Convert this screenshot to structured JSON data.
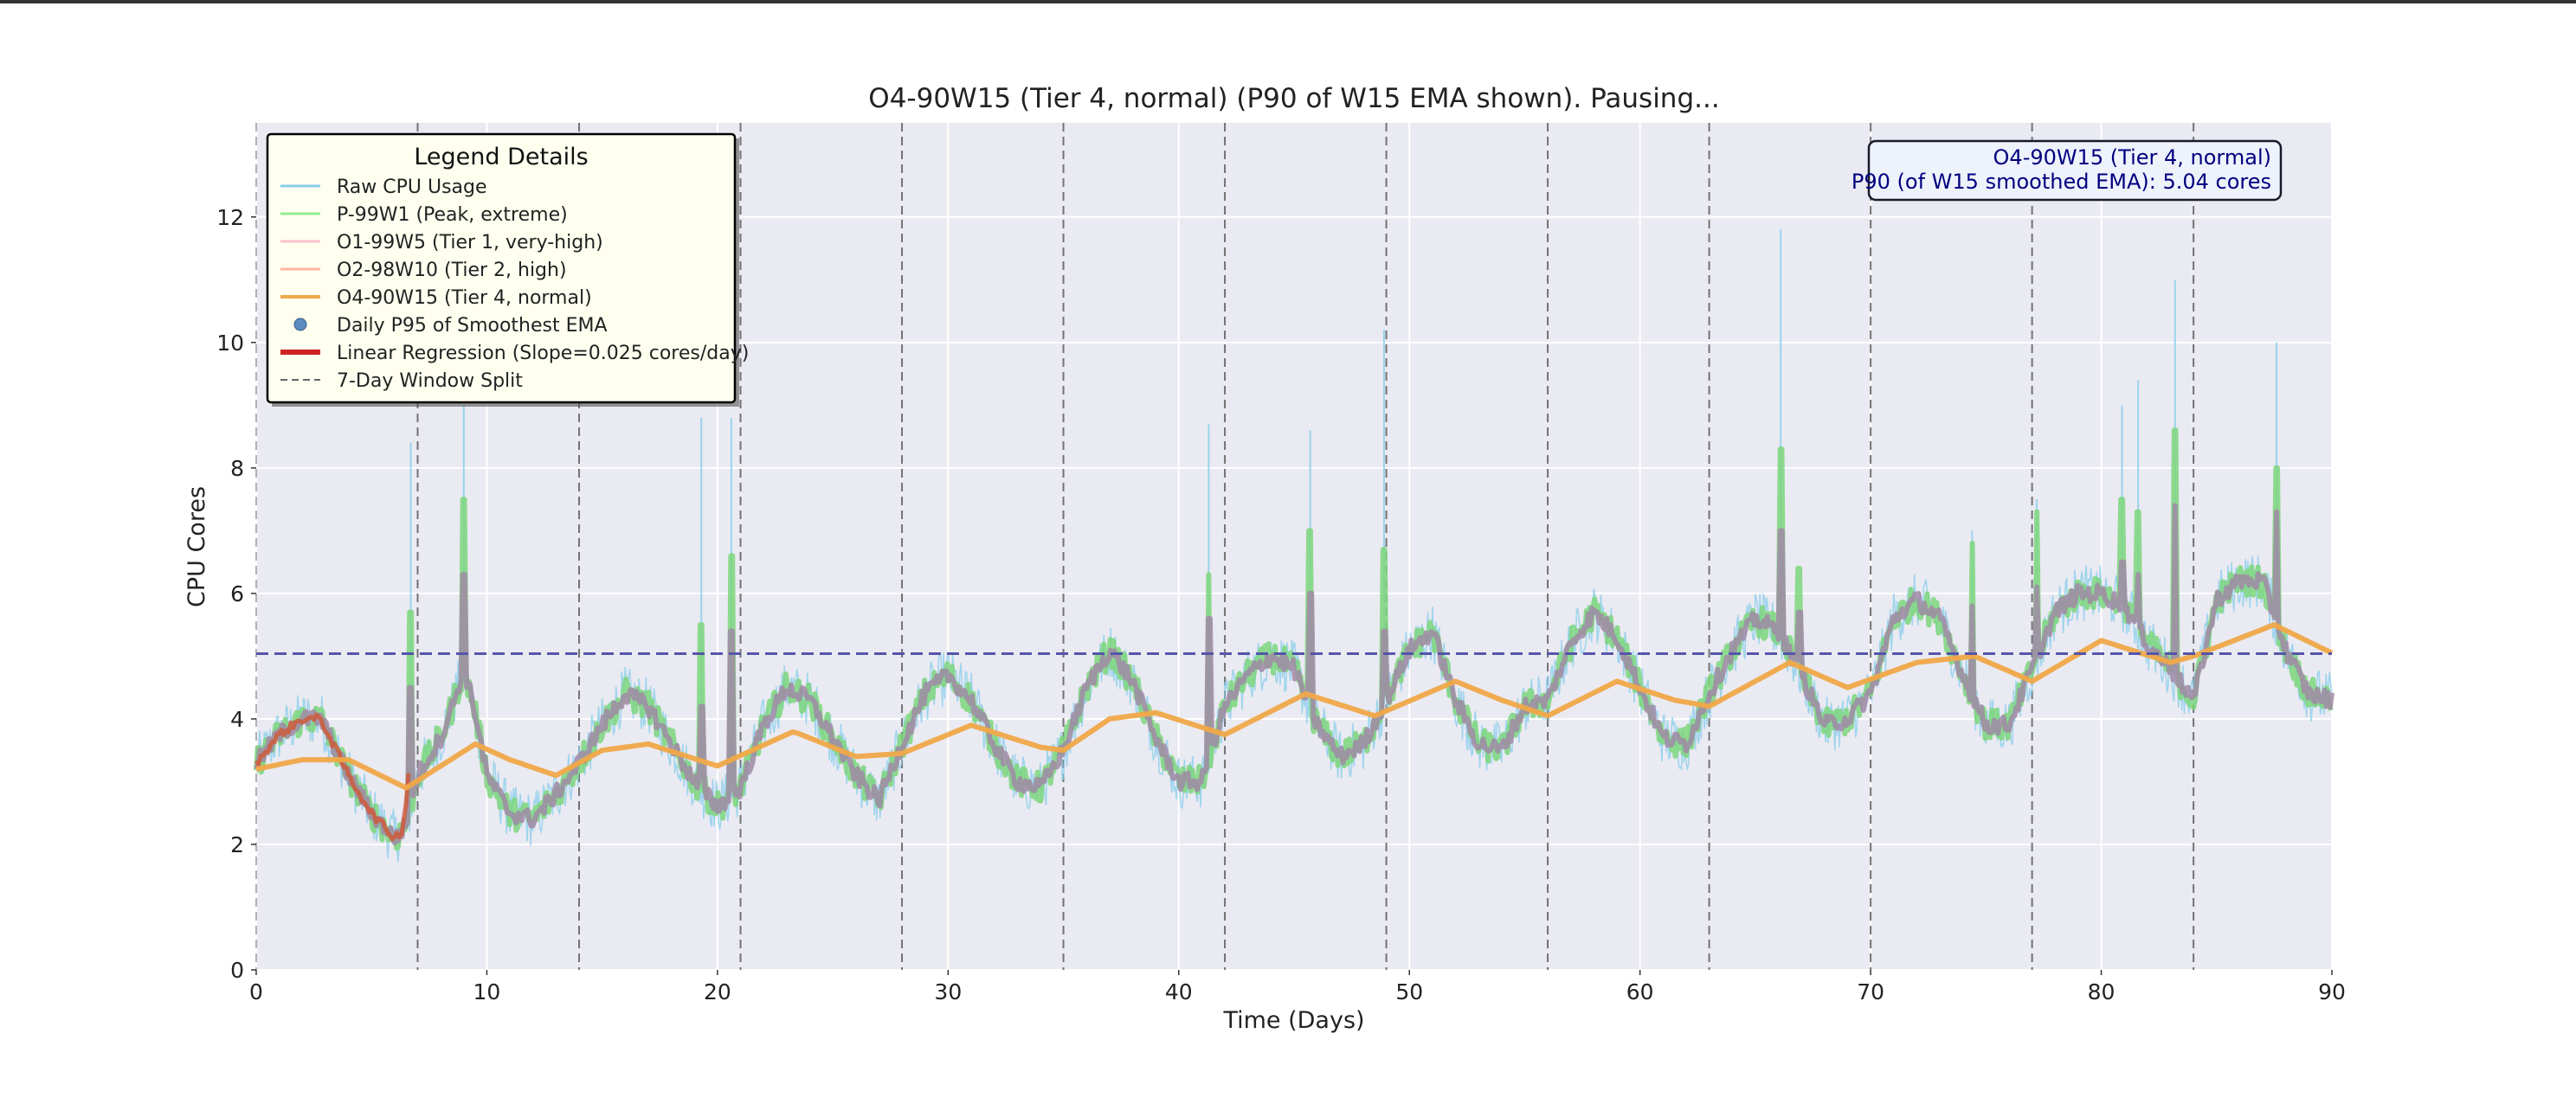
{
  "chart_data": {
    "type": "line",
    "title": "O4-90W15 (Tier 4, normal) (P90 of W15 EMA shown). Pausing...",
    "xlabel": "Time (Days)",
    "ylabel": "CPU Cores",
    "xlim": [
      0,
      90
    ],
    "ylim": [
      0,
      13.5
    ],
    "xticks": [
      0,
      10,
      20,
      30,
      40,
      50,
      60,
      70,
      80,
      90
    ],
    "yticks": [
      0,
      2,
      4,
      6,
      8,
      10,
      12
    ],
    "grid": true,
    "legend": {
      "title": "Legend Details",
      "placement": "top-left",
      "entries": [
        {
          "label": "Raw CPU Usage",
          "color": "#87ceeb",
          "kind": "line"
        },
        {
          "label": "P-99W1 (Peak, extreme)",
          "color": "#90ee90",
          "kind": "line"
        },
        {
          "label": "O1-99W5 (Tier 1, very-high)",
          "color": "#ffc0cb",
          "kind": "line"
        },
        {
          "label": "O2-98W10 (Tier 2, high)",
          "color": "#ffb6a0",
          "kind": "line"
        },
        {
          "label": "O4-90W15 (Tier 4, normal)",
          "color": "#f0a848",
          "kind": "line"
        },
        {
          "label": "Daily P95 of Smoothest EMA",
          "color": "#5b8dbf",
          "kind": "dot"
        },
        {
          "label": "Linear Regression (Slope=0.025 cores/day)",
          "color": "#cc2222",
          "kind": "thickline"
        },
        {
          "label": "7-Day Window Split",
          "color": "#666666",
          "kind": "dashed"
        }
      ]
    },
    "annotation": {
      "line1": "O4-90W15 (Tier 4, normal)",
      "line2": "P90 (of W15 smoothed EMA): 5.04 cores",
      "placement": "top-right"
    },
    "p90_threshold": 5.04,
    "window_splits": [
      0,
      7,
      14,
      21,
      28,
      35,
      42,
      49,
      56,
      63,
      70,
      77,
      84
    ],
    "colors": {
      "raw": "#87ceeb",
      "peak": "#7cd67c",
      "tier1": "#a08aa6",
      "tier2": "#cd5c3c",
      "tier4": "#f0a848",
      "p90line": "#5555aa",
      "split": "#666666",
      "plot_bg": "#eaeaf2"
    },
    "series": [
      {
        "name": "O2-98W10 (Tier 2, high)",
        "x": [
          0,
          1,
          2,
          2.8,
          4,
          5,
          6,
          6.5,
          7,
          7.5,
          8,
          8.5,
          9,
          9.5,
          10,
          11,
          12,
          13,
          14,
          15,
          16,
          17,
          18,
          19,
          20,
          21,
          22,
          23,
          24,
          25,
          26,
          27,
          28,
          29,
          30,
          31,
          32,
          33,
          34,
          35,
          36,
          37,
          38,
          39,
          40,
          41,
          42,
          43,
          44,
          45,
          46,
          47,
          48,
          49,
          50,
          51,
          52,
          53,
          54,
          55,
          56,
          57,
          58,
          59,
          60,
          61,
          62,
          63,
          64,
          65,
          66,
          67,
          68,
          69,
          70,
          71,
          72,
          73,
          74,
          75,
          76,
          77,
          78,
          79,
          80,
          81,
          82,
          83,
          84,
          85,
          86,
          87,
          88,
          89,
          90
        ],
        "y": [
          3.3,
          3.75,
          4.0,
          4.0,
          3.1,
          2.5,
          2.1,
          2.3,
          3.1,
          3.4,
          3.7,
          4.2,
          4.8,
          4.1,
          3.1,
          2.5,
          2.4,
          2.8,
          3.3,
          3.9,
          4.4,
          4.2,
          3.6,
          3.0,
          2.6,
          2.9,
          3.9,
          4.5,
          4.3,
          3.7,
          3.1,
          2.7,
          3.6,
          4.4,
          4.7,
          4.3,
          3.6,
          3.0,
          2.9,
          3.5,
          4.5,
          5.1,
          4.6,
          3.7,
          3.0,
          3.0,
          4.2,
          4.7,
          5.0,
          4.8,
          3.9,
          3.4,
          3.6,
          4.3,
          5.1,
          5.4,
          4.3,
          3.6,
          3.5,
          4.2,
          4.3,
          5.2,
          5.7,
          5.3,
          4.5,
          3.7,
          3.6,
          4.4,
          5.1,
          5.6,
          5.4,
          4.7,
          3.9,
          4.0,
          4.4,
          5.6,
          5.9,
          5.6,
          4.7,
          3.9,
          3.9,
          4.8,
          5.7,
          6.0,
          6.0,
          5.8,
          5.2,
          4.8,
          4.3,
          5.9,
          6.2,
          6.2,
          5.1,
          4.4,
          4.3
        ]
      },
      {
        "name": "O4-90W15 (Tier 4, normal)",
        "x": [
          0,
          2,
          4,
          6.5,
          8,
          9.5,
          11,
          13,
          15,
          17,
          20,
          23.3,
          26,
          28,
          31,
          34,
          35,
          37,
          39,
          42,
          45.5,
          48.5,
          52,
          54,
          56,
          59,
          61.5,
          63,
          66.5,
          69,
          72,
          74.5,
          77,
          80,
          83,
          84,
          87.5,
          90
        ],
        "y": [
          3.2,
          3.35,
          3.35,
          2.9,
          3.25,
          3.6,
          3.35,
          3.1,
          3.5,
          3.6,
          3.25,
          3.8,
          3.4,
          3.45,
          3.9,
          3.55,
          3.5,
          4.0,
          4.1,
          3.75,
          4.4,
          4.05,
          4.6,
          4.3,
          4.05,
          4.6,
          4.3,
          4.2,
          4.9,
          4.5,
          4.9,
          5.0,
          4.6,
          5.25,
          4.9,
          5.0,
          5.5,
          5.05
        ]
      }
    ],
    "spikes": [
      {
        "x": 6.7,
        "peak": 5.7,
        "tier1": 4.5
      },
      {
        "x": 9.0,
        "peak": 7.5,
        "tier1": 6.3
      },
      {
        "x": 19.3,
        "peak": 5.5,
        "tier1": 4.2
      },
      {
        "x": 20.6,
        "peak": 6.6,
        "tier1": 5.4
      },
      {
        "x": 41.3,
        "peak": 6.3,
        "tier1": 5.6
      },
      {
        "x": 45.7,
        "peak": 7.0,
        "tier1": 6.0
      },
      {
        "x": 48.9,
        "peak": 6.7,
        "tier1": 5.4
      },
      {
        "x": 66.1,
        "peak": 8.3,
        "tier1": 7.0
      },
      {
        "x": 66.9,
        "peak": 6.4,
        "tier1": 5.7
      },
      {
        "x": 74.4,
        "peak": 6.8,
        "tier1": 5.8
      },
      {
        "x": 77.2,
        "peak": 7.3,
        "tier1": 6.1
      },
      {
        "x": 80.9,
        "peak": 7.5,
        "tier1": 6.5
      },
      {
        "x": 81.6,
        "peak": 7.3,
        "tier1": 6.3
      },
      {
        "x": 83.2,
        "peak": 8.6,
        "tier1": 7.4
      },
      {
        "x": 87.6,
        "peak": 8.0,
        "tier1": 7.3
      }
    ],
    "raw_spikes": [
      {
        "x": 6.7,
        "y": 8.4
      },
      {
        "x": 9.0,
        "y": 9.0
      },
      {
        "x": 19.3,
        "y": 8.8
      },
      {
        "x": 20.6,
        "y": 8.8
      },
      {
        "x": 41.3,
        "y": 8.7
      },
      {
        "x": 45.7,
        "y": 8.6
      },
      {
        "x": 48.9,
        "y": 10.2
      },
      {
        "x": 66.1,
        "y": 11.8
      },
      {
        "x": 74.4,
        "y": 7.0
      },
      {
        "x": 77.2,
        "y": 7.5
      },
      {
        "x": 80.9,
        "y": 9.0
      },
      {
        "x": 81.6,
        "y": 9.4
      },
      {
        "x": 83.2,
        "y": 11.0
      },
      {
        "x": 87.6,
        "y": 10.0
      }
    ]
  }
}
